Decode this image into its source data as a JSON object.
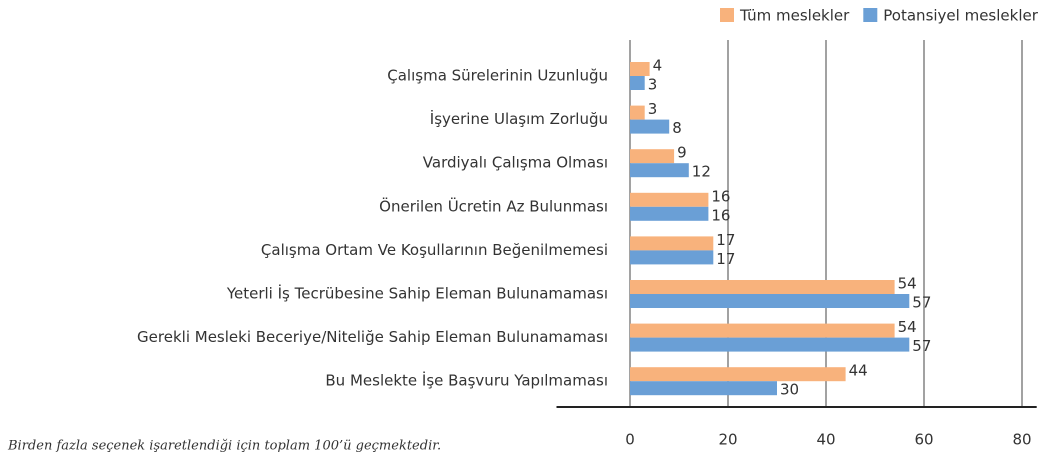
{
  "chart_data": {
    "type": "bar",
    "orientation": "horizontal",
    "categories": [
      "Çalışma Sürelerinin Uzunluğu",
      "İşyerine Ulaşım Zorluğu",
      "Vardiyalı Çalışma  Olması",
      "Önerilen Ücretin Az Bulunması",
      "Çalışma Ortam Ve Koşullarının Beğenilmemesi",
      "Yeterli İş Tecrübesine Sahip Eleman Bulunamaması",
      "Gerekli Mesleki Beceriye/Niteliğe Sahip Eleman Bulunamaması",
      "Bu Meslekte İşe Başvuru Yapılmaması"
    ],
    "series": [
      {
        "name": "Tüm meslekler",
        "color": "#f8b27c",
        "values": [
          4,
          3,
          9,
          16,
          17,
          54,
          54,
          44
        ]
      },
      {
        "name": "Potansiyel meslekler",
        "color": "#6a9fd6",
        "values": [
          3,
          8,
          12,
          16,
          17,
          57,
          57,
          30
        ]
      }
    ],
    "xlim": [
      -15,
      83
    ],
    "xticks": [
      0,
      20,
      40,
      60,
      80
    ],
    "grid": true,
    "legend": "top-right",
    "annotations": [
      "Birden fazla seçenek işaretlendiği için toplam 100’ü geçmektedir."
    ]
  }
}
